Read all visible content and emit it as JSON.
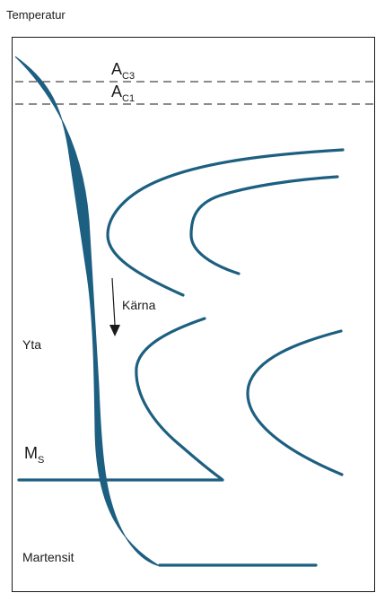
{
  "title": "Temperatur",
  "lines": {
    "ac3": {
      "main": "A",
      "sub": "C3"
    },
    "ac1": {
      "main": "A",
      "sub": "C1"
    },
    "ms": {
      "main": "M",
      "sub": "S"
    }
  },
  "labels": {
    "core": "Kärna",
    "surface": "Yta",
    "martensite": "Martensit"
  },
  "colors": {
    "curve": "#1d5f80",
    "frame": "#1a1a1a",
    "dashed": "#1a1a1a"
  }
}
